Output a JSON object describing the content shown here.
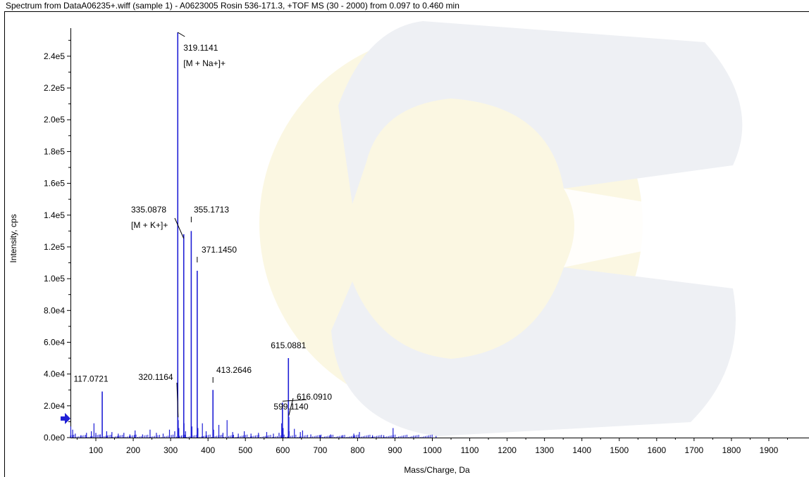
{
  "title": "Spectrum from DataA06235+.wiff (sample 1) - A0623005 Rosin 536-171.3, +TOF MS (30 - 2000) from 0.097 to 0.460 min",
  "colors": {
    "trace": "#1f1fd6",
    "axis": "#000000",
    "watermark_yellow": "#fbf7e2",
    "watermark_gray": "#eef0f4"
  },
  "chart_data": {
    "type": "bar",
    "title": "Spectrum from DataA06235+.wiff (sample 1) - A0623005 Rosin 536-171.3, +TOF MS (30 - 2000) from 0.097 to 0.460 min",
    "xlabel": "Mass/Charge, Da",
    "ylabel": "Intensity, cps",
    "xlim": [
      30,
      2000
    ],
    "ylim": [
      0,
      255000
    ],
    "x_ticks": [
      100,
      200,
      300,
      400,
      500,
      600,
      700,
      800,
      900,
      1000,
      1100,
      1200,
      1300,
      1400,
      1500,
      1600,
      1700,
      1800,
      1900
    ],
    "y_ticks": [
      {
        "value": 0,
        "label": "0.0e0"
      },
      {
        "value": 20000,
        "label": "2.0e4"
      },
      {
        "value": 40000,
        "label": "4.0e4"
      },
      {
        "value": 60000,
        "label": "6.0e4"
      },
      {
        "value": 80000,
        "label": "8.0e4"
      },
      {
        "value": 100000,
        "label": "1.0e5"
      },
      {
        "value": 120000,
        "label": "1.2e5"
      },
      {
        "value": 140000,
        "label": "1.4e5"
      },
      {
        "value": 160000,
        "label": "1.6e5"
      },
      {
        "value": 180000,
        "label": "1.8e5"
      },
      {
        "value": 200000,
        "label": "2.0e5"
      },
      {
        "value": 220000,
        "label": "2.2e5"
      },
      {
        "value": 240000,
        "label": "2.4e5"
      }
    ],
    "grid": false,
    "peaks": [
      {
        "mz": 117.0721,
        "intensity": 29000,
        "label": "117.0721"
      },
      {
        "mz": 319.1141,
        "intensity": 255000,
        "label": "319.1141",
        "annotation": "[M + Na+]+"
      },
      {
        "mz": 320.1164,
        "intensity": 11000,
        "label": "320.1164"
      },
      {
        "mz": 335.0878,
        "intensity": 128000,
        "label": "335.0878",
        "annotation": "[M + K+]+"
      },
      {
        "mz": 355.1713,
        "intensity": 130000,
        "label": "355.1713"
      },
      {
        "mz": 371.145,
        "intensity": 105000,
        "label": "371.1450"
      },
      {
        "mz": 413.2646,
        "intensity": 30000,
        "label": "413.2646"
      },
      {
        "mz": 599.114,
        "intensity": 22000,
        "label": "599.1140"
      },
      {
        "mz": 615.0881,
        "intensity": 50000,
        "label": "615.0881"
      },
      {
        "mz": 616.091,
        "intensity": 13000,
        "label": "616.0910"
      }
    ],
    "minor_peaks": [
      {
        "mz": 33,
        "intensity": 7000
      },
      {
        "mz": 38,
        "intensity": 5000
      },
      {
        "mz": 45,
        "intensity": 2500
      },
      {
        "mz": 60,
        "intensity": 1500
      },
      {
        "mz": 75,
        "intensity": 3000
      },
      {
        "mz": 88,
        "intensity": 4000
      },
      {
        "mz": 95,
        "intensity": 9000
      },
      {
        "mz": 100,
        "intensity": 3000
      },
      {
        "mz": 112,
        "intensity": 2000
      },
      {
        "mz": 129,
        "intensity": 4000
      },
      {
        "mz": 143,
        "intensity": 3500
      },
      {
        "mz": 160,
        "intensity": 2500
      },
      {
        "mz": 175,
        "intensity": 3000
      },
      {
        "mz": 191,
        "intensity": 2000
      },
      {
        "mz": 205,
        "intensity": 4500
      },
      {
        "mz": 225,
        "intensity": 2000
      },
      {
        "mz": 245,
        "intensity": 5000
      },
      {
        "mz": 262,
        "intensity": 3000
      },
      {
        "mz": 280,
        "intensity": 2500
      },
      {
        "mz": 297,
        "intensity": 5000
      },
      {
        "mz": 311,
        "intensity": 4000
      },
      {
        "mz": 322,
        "intensity": 6000
      },
      {
        "mz": 336,
        "intensity": 9000
      },
      {
        "mz": 340,
        "intensity": 4000
      },
      {
        "mz": 357,
        "intensity": 7000
      },
      {
        "mz": 373,
        "intensity": 6000
      },
      {
        "mz": 385,
        "intensity": 9000
      },
      {
        "mz": 395,
        "intensity": 4000
      },
      {
        "mz": 415,
        "intensity": 5000
      },
      {
        "mz": 429,
        "intensity": 8000
      },
      {
        "mz": 440,
        "intensity": 3000
      },
      {
        "mz": 451,
        "intensity": 11000
      },
      {
        "mz": 466,
        "intensity": 3500
      },
      {
        "mz": 481,
        "intensity": 2500
      },
      {
        "mz": 497,
        "intensity": 4000
      },
      {
        "mz": 515,
        "intensity": 2500
      },
      {
        "mz": 535,
        "intensity": 3000
      },
      {
        "mz": 557,
        "intensity": 3500
      },
      {
        "mz": 575,
        "intensity": 2500
      },
      {
        "mz": 590,
        "intensity": 3000
      },
      {
        "mz": 597,
        "intensity": 9000
      },
      {
        "mz": 601,
        "intensity": 6000
      },
      {
        "mz": 617,
        "intensity": 4000
      },
      {
        "mz": 631,
        "intensity": 5500
      },
      {
        "mz": 647,
        "intensity": 3500
      },
      {
        "mz": 653,
        "intensity": 4500
      },
      {
        "mz": 675,
        "intensity": 2000
      },
      {
        "mz": 700,
        "intensity": 1500
      },
      {
        "mz": 728,
        "intensity": 2000
      },
      {
        "mz": 760,
        "intensity": 1500
      },
      {
        "mz": 790,
        "intensity": 2500
      },
      {
        "mz": 805,
        "intensity": 3500
      },
      {
        "mz": 840,
        "intensity": 1500
      },
      {
        "mz": 870,
        "intensity": 1500
      },
      {
        "mz": 895,
        "intensity": 6000
      },
      {
        "mz": 950,
        "intensity": 1200
      },
      {
        "mz": 1010,
        "intensity": 1000
      }
    ],
    "marker": {
      "type": "arrow",
      "intensity": 12000,
      "color": "#1f1fd6"
    }
  }
}
